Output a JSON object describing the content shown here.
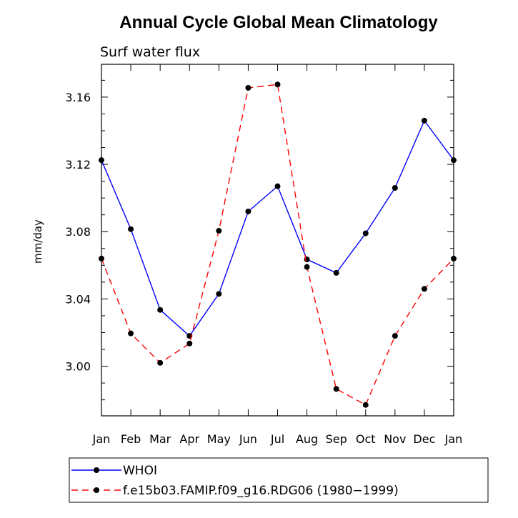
{
  "chart_data": {
    "type": "line",
    "title": "Annual Cycle Global Mean Climatology",
    "subtitle": "Surf water flux",
    "xlabel": "",
    "ylabel": "mm/day",
    "categories": [
      "Jan",
      "Feb",
      "Mar",
      "Apr",
      "May",
      "Jun",
      "Jul",
      "Aug",
      "Sep",
      "Oct",
      "Nov",
      "Dec",
      "Jan"
    ],
    "ylim": [
      2.9705,
      3.1795
    ],
    "yticks": [
      3.0,
      3.04,
      3.08,
      3.12,
      3.16
    ],
    "ytick_labels": [
      "3.00",
      "3.04",
      "3.08",
      "3.12",
      "3.16"
    ],
    "grid": false,
    "legend_position": "bottom",
    "series": [
      {
        "name": "WHOI",
        "color": "#0000ff",
        "dash": "solid",
        "values": [
          3.1225,
          3.0815,
          3.0335,
          3.018,
          3.043,
          3.092,
          3.107,
          3.0635,
          3.0555,
          3.079,
          3.106,
          3.146,
          3.1225
        ]
      },
      {
        "name": "f.e15b03.FAMIP.f09_g16.RDG06 (1980−1999)",
        "color": "#ff0000",
        "dash": "dashed",
        "values": [
          3.064,
          3.0195,
          3.002,
          3.0135,
          3.0805,
          3.1655,
          3.1675,
          3.059,
          2.9865,
          2.977,
          3.018,
          3.046,
          3.064
        ]
      }
    ]
  }
}
